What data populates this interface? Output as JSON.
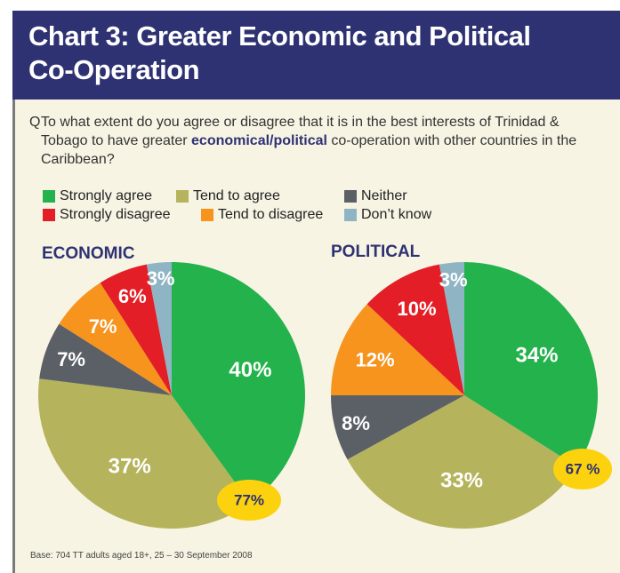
{
  "title": "Chart 3: Greater Economic and Political Co-Operation",
  "question": {
    "marker": "Q",
    "before": "To what extent do you agree or disagree that it is in the best interests of Trinidad & Tobago to have greater ",
    "emphasis": "economical/political",
    "after": " co-operation with other countries in the Caribbean?"
  },
  "legend": [
    {
      "label": "Strongly agree",
      "color": "#23b24b"
    },
    {
      "label": "Tend to agree",
      "color": "#b5b35c"
    },
    {
      "label": "Neither",
      "color": "#5b6066"
    },
    {
      "label": "Strongly disagree",
      "color": "#e31e26"
    },
    {
      "label": "Tend to disagree",
      "color": "#f7941d"
    },
    {
      "label": "Don’t know",
      "color": "#8fb5c4"
    }
  ],
  "base_note": "Base: 704 TT adults aged 18+, 25 – 30 September 2008",
  "chart_data": [
    {
      "type": "pie",
      "title": "ECONOMIC",
      "slices": [
        {
          "label": "Strongly agree",
          "value": 40,
          "text": "40%"
        },
        {
          "label": "Tend to agree",
          "value": 37,
          "text": "37%"
        },
        {
          "label": "Neither",
          "value": 7,
          "text": "7%"
        },
        {
          "label": "Tend to disagree",
          "value": 7,
          "text": "7%"
        },
        {
          "label": "Strongly disagree",
          "value": 6,
          "text": "6%"
        },
        {
          "label": "Don’t know",
          "value": 3,
          "text": "3%"
        }
      ],
      "total_agree": "77%"
    },
    {
      "type": "pie",
      "title": "POLITICAL",
      "slices": [
        {
          "label": "Strongly agree",
          "value": 34,
          "text": "34%"
        },
        {
          "label": "Tend to agree",
          "value": 33,
          "text": "33%"
        },
        {
          "label": "Neither",
          "value": 8,
          "text": "8%"
        },
        {
          "label": "Tend to disagree",
          "value": 12,
          "text": "12%"
        },
        {
          "label": "Strongly disagree",
          "value": 10,
          "text": "10%"
        },
        {
          "label": "Don’t know",
          "value": 3,
          "text": "3%"
        }
      ],
      "total_agree": "67 %"
    }
  ],
  "colors": {
    "Strongly agree": "#23b24b",
    "Tend to agree": "#b5b35c",
    "Neither": "#5b6066",
    "Tend to disagree": "#f7941d",
    "Strongly disagree": "#e31e26",
    "Don’t know": "#8fb5c4",
    "badge": "#fcd20f",
    "badge_text": "#2e3272"
  }
}
